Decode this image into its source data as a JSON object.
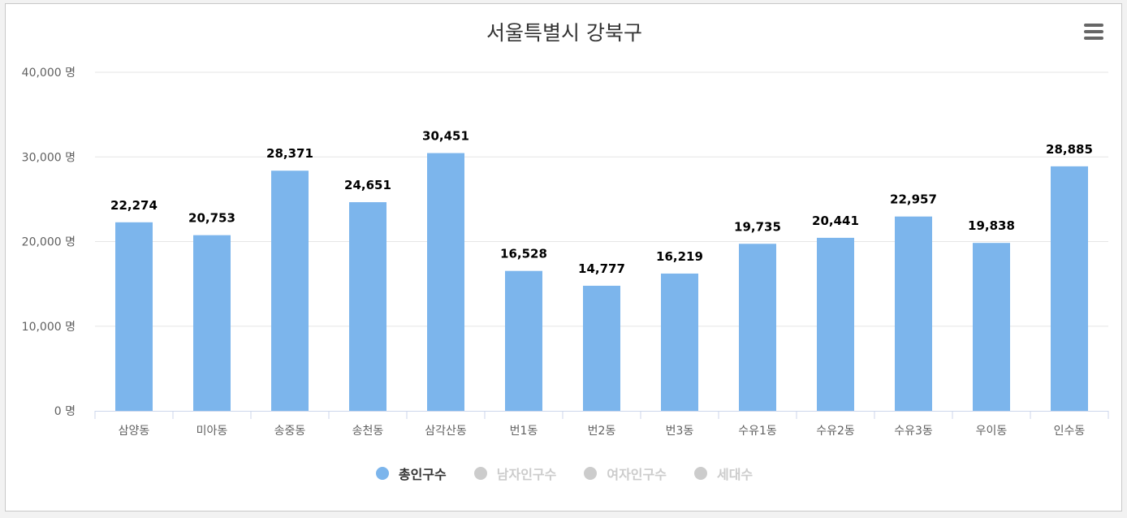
{
  "title": "서울특별시 강북구",
  "menu_icon": "hamburger-menu-icon",
  "legend": [
    {
      "label": "총인구수",
      "active": true,
      "color": "#7cb5ec",
      "text_color": "#333333"
    },
    {
      "label": "남자인구수",
      "active": false,
      "color": "#cccccc",
      "text_color": "#cccccc"
    },
    {
      "label": "여자인구수",
      "active": false,
      "color": "#cccccc",
      "text_color": "#cccccc"
    },
    {
      "label": "세대수",
      "active": false,
      "color": "#cccccc",
      "text_color": "#cccccc"
    }
  ],
  "chart_data": {
    "type": "bar",
    "title": "서울특별시 강북구",
    "categories": [
      "삼양동",
      "미아동",
      "송중동",
      "송천동",
      "삼각산동",
      "번1동",
      "번2동",
      "번3동",
      "수유1동",
      "수유2동",
      "수유3동",
      "우이동",
      "인수동"
    ],
    "series": [
      {
        "name": "총인구수",
        "color": "#7cb5ec",
        "values": [
          22274,
          20753,
          28371,
          24651,
          30451,
          16528,
          14777,
          16219,
          19735,
          20441,
          22957,
          19838,
          28885
        ]
      }
    ],
    "data_labels": [
      "22,274",
      "20,753",
      "28,371",
      "24,651",
      "30,451",
      "16,528",
      "14,777",
      "16,219",
      "19,735",
      "20,441",
      "22,957",
      "19,838",
      "28,885"
    ],
    "y_ticks": [
      0,
      10000,
      20000,
      30000,
      40000
    ],
    "y_tick_labels": [
      "0 명",
      "10,000 명",
      "20,000 명",
      "30,000 명",
      "40,000 명"
    ],
    "ylim": [
      0,
      40000
    ],
    "grid": true,
    "legend_position": "bottom-center"
  }
}
